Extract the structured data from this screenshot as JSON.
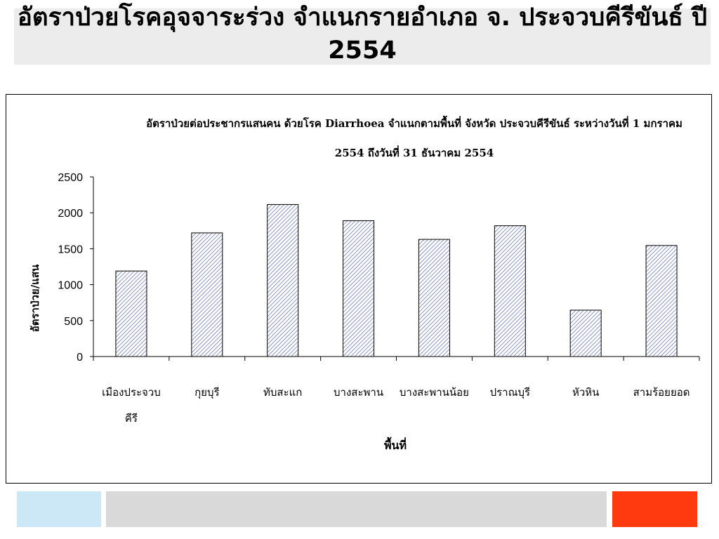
{
  "slide": {
    "title": "อัตราป่วยโรคอุจจาระร่วง จำแนกรายอำเภอ จ. ประจวบคีรีขันธ์ ปี 2554"
  },
  "chart_data": {
    "type": "bar",
    "title": "อัตราป่วยต่อประชากรแสนคน ด้วยโรค Diarrhoea จำแนกตามพื้นที่   จังหวัด ประจวบคีรีขันธ์ ระหว่างวันที่  1 มกราคม 2554  ถึงวันที่  31 ธันวาคม 2554",
    "xlabel": "พื้นที่",
    "ylabel": "อัตราป่วย/แสน",
    "categories": [
      "เมืองประจวบคีรี",
      "กุยบุรี",
      "ทับสะแก",
      "บางสะพาน",
      "บางสะพานน้อย",
      "ปราณบุรี",
      "หัวหิน",
      "สามร้อยยอด"
    ],
    "category_lines": [
      [
        "เมืองประจวบ",
        "คีรี"
      ],
      [
        "กุยบุรี"
      ],
      [
        "ทับสะแก"
      ],
      [
        "บางสะพาน"
      ],
      [
        "บางสะพานน้อย"
      ],
      [
        "ปราณบุรี"
      ],
      [
        "หัวหิน"
      ],
      [
        "สามร้อยยอด"
      ]
    ],
    "values": [
      1190,
      1720,
      2115,
      1890,
      1630,
      1820,
      645,
      1545
    ],
    "ylim": [
      0,
      2500
    ],
    "yticks": [
      "0",
      "500",
      "1000",
      "1500",
      "2000",
      "2500"
    ],
    "grid": false,
    "legend": "none",
    "bar_pattern": "diagonal-hatch",
    "colors": {
      "bar_fill": "#ffffff",
      "hatch": "#5060b0",
      "axis": "#000000"
    }
  },
  "colors": {
    "title_band": "#ececec",
    "footer_blue": "#cce8f7",
    "footer_gray": "#d9d9d9",
    "footer_red": "#ff3a0e"
  }
}
